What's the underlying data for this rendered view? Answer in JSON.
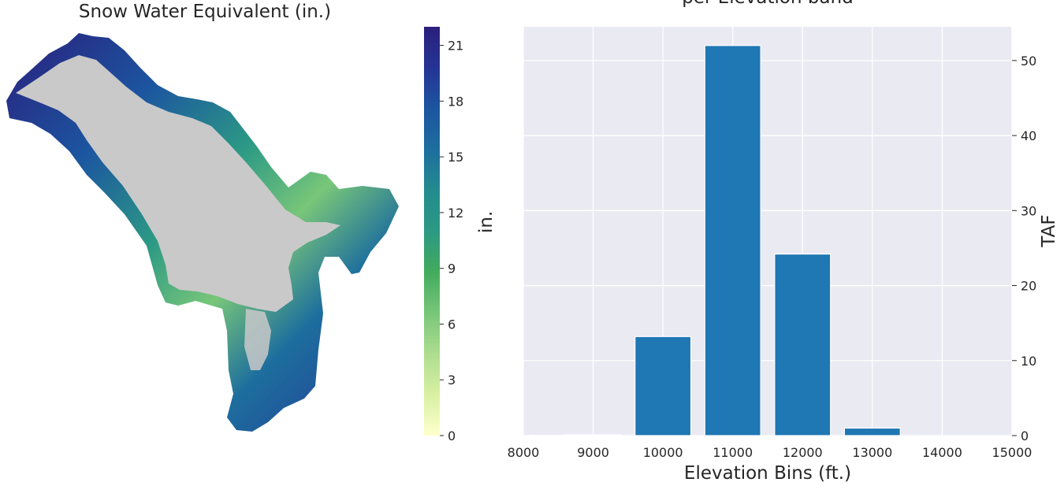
{
  "colors": {
    "bar": "#1f77b4",
    "plot_bg": "#eaeaf2",
    "grid": "#ffffff",
    "no_snow": "#c9c9c9",
    "cmap": [
      "#ffffcc",
      "#d9f0a3",
      "#addd8e",
      "#78c679",
      "#41ab5d",
      "#2c9a84",
      "#238b8f",
      "#1d6e9e",
      "#1c55a0",
      "#253494",
      "#2a1f7c"
    ]
  },
  "map_panel": {
    "title": "Snow Water Equivalent (in.)",
    "colorbar": {
      "label": "in.",
      "min": 0,
      "max": 22,
      "ticks": [
        "0",
        "3",
        "6",
        "9",
        "12",
        "15",
        "18",
        "21"
      ]
    }
  },
  "chart_data": {
    "type": "bar",
    "title_line1": "",
    "title_line2": "per Elevation band",
    "xlabel": "Elevation Bins (ft.)",
    "ylabel": "TAF",
    "x": [
      8500,
      9000,
      10000,
      11000,
      12000,
      13000,
      14000
    ],
    "values": [
      0.05,
      0.1,
      13.2,
      52.0,
      24.2,
      1.0,
      0.0
    ],
    "bar_width": 800,
    "xlim": [
      8000,
      15000
    ],
    "ylim": [
      0,
      54.5
    ],
    "xticks": [
      8000,
      9000,
      10000,
      11000,
      12000,
      13000,
      14000,
      15000
    ],
    "yticks": [
      0,
      10,
      20,
      30,
      40,
      50
    ],
    "grid": true,
    "y_axis_side": "right"
  }
}
